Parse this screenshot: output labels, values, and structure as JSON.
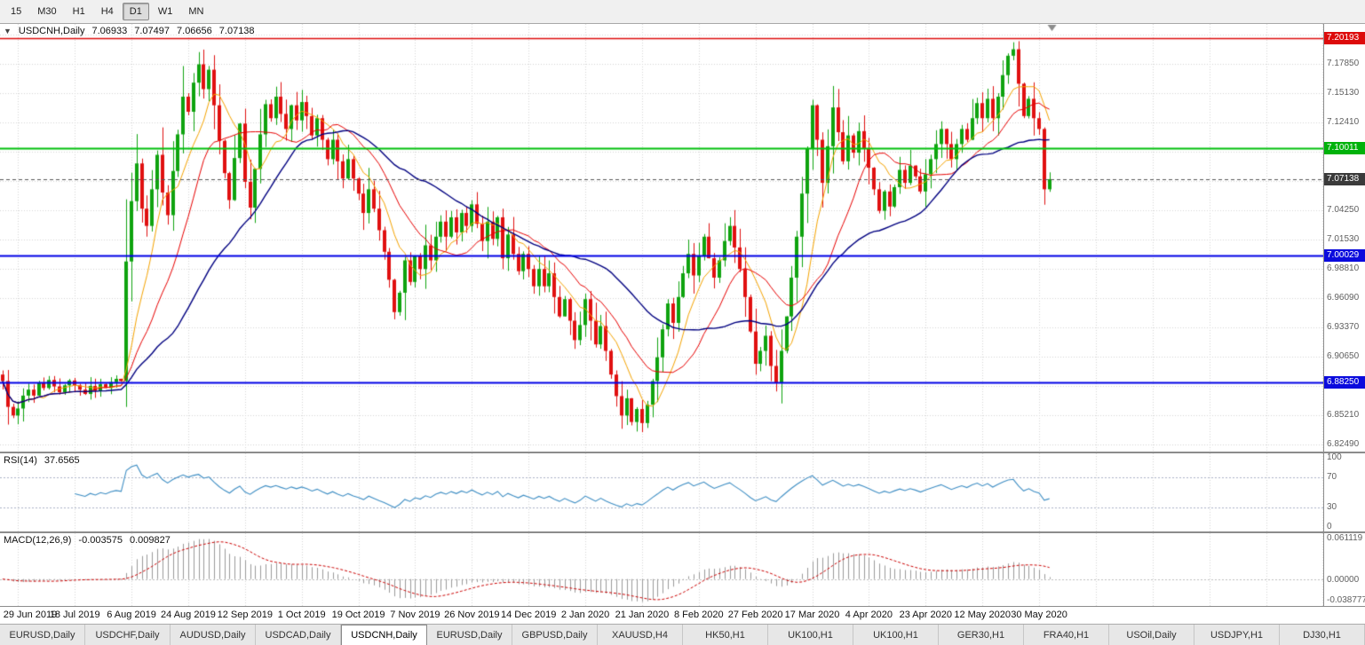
{
  "toolbar": {
    "periods": [
      {
        "label": "15",
        "active": false
      },
      {
        "label": "M30",
        "active": false
      },
      {
        "label": "H1",
        "active": false
      },
      {
        "label": "H4",
        "active": false
      },
      {
        "label": "D1",
        "active": true
      },
      {
        "label": "W1",
        "active": false
      },
      {
        "label": "MN",
        "active": false
      }
    ]
  },
  "main_pane": {
    "symbol_label": "USDCNH,Daily",
    "ohlc": {
      "open": "7.06933",
      "high": "7.07497",
      "low": "7.06656",
      "close": "7.07138"
    }
  },
  "rsi_pane": {
    "label": "RSI(14)",
    "value": "37.6565",
    "scale_ticks": [
      "100",
      "70",
      "30",
      "0"
    ]
  },
  "macd_pane": {
    "label": "MACD(12,26,9)",
    "value_main": "-0.003575",
    "value_signal": "0.009827",
    "scale_labels": [
      "0.061119",
      "0.00000",
      "-0.038777"
    ]
  },
  "date_axis": {
    "labels": [
      "29 Jun 2019",
      "18 Jul 2019",
      "6 Aug 2019",
      "24 Aug 2019",
      "12 Sep 2019",
      "1 Oct 2019",
      "19 Oct 2019",
      "7 Nov 2019",
      "26 Nov 2019",
      "14 Dec 2019",
      "2 Jan 2020",
      "21 Jan 2020",
      "8 Feb 2020",
      "27 Feb 2020",
      "17 Mar 2020",
      "4 Apr 2020",
      "23 Apr 2020",
      "12 May 2020",
      "30 May 2020"
    ]
  },
  "tabs": {
    "items": [
      {
        "label": "EURUSD,Daily",
        "active": false
      },
      {
        "label": "USDCHF,Daily",
        "active": false
      },
      {
        "label": "AUDUSD,Daily",
        "active": false
      },
      {
        "label": "USDCAD,Daily",
        "active": false
      },
      {
        "label": "USDCNH,Daily",
        "active": true
      },
      {
        "label": "EURUSD,Daily",
        "active": false
      },
      {
        "label": "GBPUSD,Daily",
        "active": false
      },
      {
        "label": "XAUUSD,H4",
        "active": false
      },
      {
        "label": "HK50,H1",
        "active": false
      },
      {
        "label": "UK100,H1",
        "active": false
      },
      {
        "label": "UK100,H1",
        "active": false
      },
      {
        "label": "GER30,H1",
        "active": false
      },
      {
        "label": "FRA40,H1",
        "active": false
      },
      {
        "label": "USOil,Daily",
        "active": false
      },
      {
        "label": "USDJPY,H1",
        "active": false
      },
      {
        "label": "DJ30,H1",
        "active": false
      }
    ]
  },
  "chart_data": {
    "type": "candlestick",
    "symbol": "USDCNH",
    "timeframe": "Daily",
    "ohlc_current": {
      "open": 7.06933,
      "high": 7.07497,
      "low": 7.06656,
      "close": 7.07138
    },
    "price_range": {
      "top": 7.2155,
      "bottom": 6.8185
    },
    "shift_fraction": 0.795,
    "first_open": 6.89,
    "x_labels": [
      "29 Jun 2019",
      "18 Jul 2019",
      "6 Aug 2019",
      "24 Aug 2019",
      "12 Sep 2019",
      "1 Oct 2019",
      "19 Oct 2019",
      "7 Nov 2019",
      "26 Nov 2019",
      "14 Dec 2019",
      "2 Jan 2020",
      "21 Jan 2020",
      "8 Feb 2020",
      "27 Feb 2020",
      "17 Mar 2020",
      "4 Apr 2020",
      "23 Apr 2020",
      "12 May 2020",
      "30 May 2020"
    ],
    "x_label_bars": [
      3,
      14,
      25,
      36,
      47,
      58,
      69,
      80,
      91,
      102,
      113,
      124,
      135,
      146,
      157,
      168,
      179,
      190,
      201
    ],
    "closes": [
      6.884,
      6.86,
      6.852,
      6.8585,
      6.8705,
      6.876,
      6.8705,
      6.882,
      6.8775,
      6.885,
      6.879,
      6.8735,
      6.88,
      6.8845,
      6.88,
      6.876,
      6.872,
      6.8795,
      6.875,
      6.881,
      6.8775,
      6.883,
      6.886,
      6.884,
      6.995,
      7.051,
      7.086,
      7.044,
      7.028,
      7.062,
      7.094,
      7.059,
      7.038,
      7.079,
      7.113,
      7.148,
      7.134,
      7.161,
      7.178,
      7.155,
      7.173,
      7.14,
      7.107,
      7.077,
      7.052,
      7.091,
      7.123,
      7.069,
      7.045,
      7.081,
      7.113,
      7.141,
      7.128,
      7.148,
      7.132,
      7.118,
      7.14,
      7.126,
      7.143,
      7.13,
      7.112,
      7.128,
      7.108,
      7.09,
      7.108,
      7.088,
      7.072,
      7.09,
      7.072,
      7.058,
      7.04,
      7.062,
      7.044,
      7.024,
      7.004,
      6.978,
      6.948,
      6.966,
      6.996,
      6.976,
      7.0,
      6.988,
      7.01,
      6.996,
      7.018,
      7.032,
      7.018,
      7.036,
      7.022,
      7.04,
      7.028,
      7.048,
      7.03,
      7.014,
      7.032,
      7.016,
      7.036,
      6.998,
      7.02,
      7.002,
      6.986,
      7.002,
      6.988,
      6.972,
      6.988,
      6.972,
      6.984,
      6.962,
      6.944,
      6.96,
      6.94,
      6.922,
      6.936,
      6.96,
      6.94,
      6.918,
      6.935,
      6.912,
      6.89,
      6.87,
      6.852,
      6.868,
      6.846,
      6.858,
      6.845,
      6.862,
      6.884,
      6.906,
      6.932,
      6.956,
      6.938,
      6.962,
      6.984,
      7.002,
      6.982,
      7.0,
      7.018,
      6.998,
      6.98,
      6.996,
      7.014,
      7.028,
      7.008,
      6.988,
      6.962,
      6.93,
      6.9,
      6.912,
      6.926,
      6.898,
      6.882,
      6.912,
      6.944,
      6.98,
      7.018,
      7.058,
      7.1,
      7.14,
      7.108,
      7.068,
      7.102,
      7.138,
      7.115,
      7.088,
      7.112,
      7.096,
      7.116,
      7.1,
      7.082,
      7.062,
      7.042,
      7.06,
      7.046,
      7.064,
      7.08,
      7.068,
      7.084,
      7.074,
      7.06,
      7.076,
      7.09,
      7.104,
      7.118,
      7.104,
      7.09,
      7.104,
      7.118,
      7.108,
      7.128,
      7.142,
      7.128,
      7.146,
      7.128,
      7.148,
      7.168,
      7.186,
      7.192,
      7.16,
      7.13,
      7.146,
      7.128,
      7.118,
      7.062,
      7.0714
    ],
    "grid_price_step": 0.0272,
    "grid_price_base": 6.8249,
    "price_ticks": [
      "7.17850",
      "7.15130",
      "7.12410",
      "7.04250",
      "7.01530",
      "6.98810",
      "6.96090",
      "6.93370",
      "6.90650",
      "6.85210",
      "6.82490"
    ],
    "price_badges": [
      {
        "value": "7.20193",
        "price": 7.20193,
        "color": "#dd0b0b"
      },
      {
        "value": "7.10011",
        "price": 7.10011,
        "color": "#00b20b"
      },
      {
        "value": "7.07138",
        "price": 7.07138,
        "color": "#3a3a3a"
      },
      {
        "value": "7.00029",
        "price": 7.00029,
        "color": "#0b0bdd"
      },
      {
        "value": "6.88250",
        "price": 6.8825,
        "color": "#0b0bdd"
      }
    ],
    "hlines": [
      {
        "price": 7.20193,
        "color": "#dd0b0b",
        "width": 1.4
      },
      {
        "price": 7.10011,
        "color": "#00c00c",
        "width": 2
      },
      {
        "price": 7.00029,
        "color": "#0000e6",
        "width": 2
      },
      {
        "price": 6.8825,
        "color": "#0000e6",
        "width": 2
      }
    ],
    "current_price": 7.07138,
    "moving_averages": [
      {
        "period": 8,
        "color": "#f5a300",
        "width": 1
      },
      {
        "period": 16,
        "color": "#e80000",
        "width": 1
      },
      {
        "period": 34,
        "color": "#000080",
        "width": 1.4
      }
    ],
    "rsi": {
      "period": 14,
      "current": 37.6565,
      "levels": [
        70,
        30
      ],
      "color": "#3e8ec4"
    },
    "macd": {
      "fast": 12,
      "slow": 26,
      "signal_period": 9,
      "current_main": -0.003575,
      "current_signal": 0.009827,
      "histogram_color": "#9a9a9a",
      "signal_color": "#cc0000"
    }
  },
  "colors": {
    "up": "#0fa30f",
    "down": "#e01010",
    "grid": "#d6d6d6",
    "background": "#ffffff",
    "pane_border": "#8c8c8c",
    "scale_text": "#5f5f5f",
    "toolbar_bg": "#f0f0f0",
    "tabbar_bg": "#e7e7e7"
  }
}
